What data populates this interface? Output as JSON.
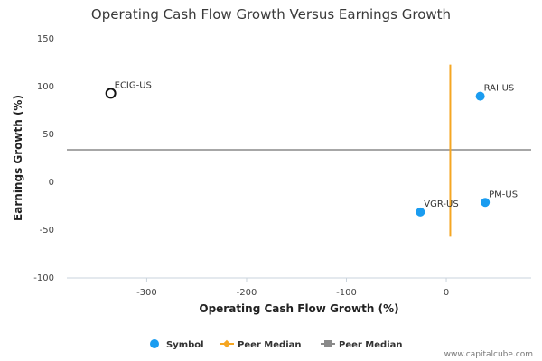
{
  "chart_data": {
    "type": "scatter",
    "title": "Operating Cash Flow Growth Versus Earnings Growth",
    "xlabel": "Operating Cash Flow Growth (%)",
    "ylabel": "Earnings Growth (%)",
    "xlim": [
      -380,
      85
    ],
    "ylim": [
      -100,
      150
    ],
    "x_ticks": [
      -300,
      -200,
      -100,
      0
    ],
    "y_ticks": [
      -100,
      -50,
      0,
      50,
      100,
      150
    ],
    "x_tick_labels": [
      "-300",
      "-200",
      "-100",
      "0"
    ],
    "y_tick_labels": [
      "-100",
      "-50",
      "0",
      "50",
      "100",
      "150"
    ],
    "points": [
      {
        "label": "ECIG-US",
        "x": -336,
        "y": 93,
        "style": "hollow",
        "color": "#111111"
      },
      {
        "label": "RAI-US",
        "x": 34,
        "y": 90,
        "style": "filled",
        "color": "#1a9cf0"
      },
      {
        "label": "PM-US",
        "x": 39,
        "y": -21,
        "style": "filled",
        "color": "#1a9cf0"
      },
      {
        "label": "VGR-US",
        "x": -26,
        "y": -31,
        "style": "filled",
        "color": "#1a9cf0"
      }
    ],
    "peer_median_x": 4,
    "peer_median_x_range": [
      -57,
      123
    ],
    "peer_median_y": 34,
    "peer_median_x_color": "#f5a623",
    "peer_median_y_color": "#8a8a8a",
    "legend": [
      {
        "label": "Symbol",
        "kind": "dot",
        "color": "#1a9cf0"
      },
      {
        "label": "Peer Median",
        "kind": "line-diamond",
        "color": "#f5a623"
      },
      {
        "label": "Peer Median",
        "kind": "line-square",
        "color": "#8a8a8a"
      }
    ],
    "legend_position": "bottom"
  },
  "credit": "www.capitalcube.com"
}
